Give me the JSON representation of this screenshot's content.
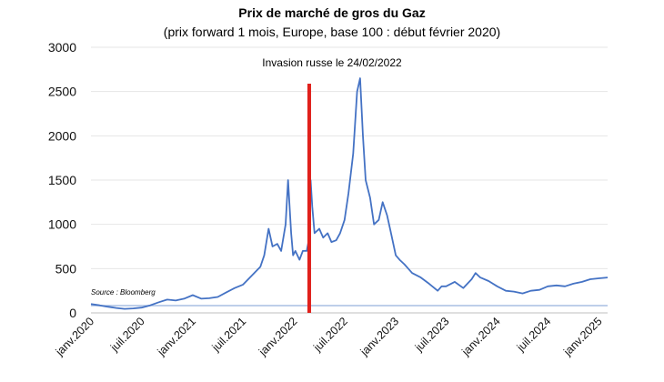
{
  "chart_data": {
    "type": "line",
    "title": "Prix de marché de gros du Gaz",
    "subtitle": "(prix forward 1 mois, Europe, base 100 : début février 2020)",
    "annotation": "Invasion russe le 24/02/2022",
    "annotation_date": "2022-02-24",
    "source": "Source : Bloomberg",
    "line_color": "#4472C4",
    "marker_color": "#E0201B",
    "ylim": [
      0,
      3000
    ],
    "yticks": [
      0,
      500,
      1000,
      1500,
      2000,
      2500,
      3000
    ],
    "ytick_labels": [
      "0",
      "500",
      "1000",
      "1500",
      "2000",
      "2500",
      "3000"
    ],
    "xlim": [
      "2020-01-01",
      "2025-02-01"
    ],
    "xticks": [
      "2020-01-01",
      "2020-07-01",
      "2021-01-01",
      "2021-07-01",
      "2022-01-01",
      "2022-07-01",
      "2023-01-01",
      "2023-07-01",
      "2024-01-01",
      "2024-07-01",
      "2025-01-01"
    ],
    "xtick_labels": [
      "janv.2020",
      "juil.2020",
      "janv.2021",
      "juil.2021",
      "janv.2022",
      "juil.2022",
      "janv.2023",
      "juil.2023",
      "janv.2024",
      "juil.2024",
      "janv.2025"
    ],
    "series": [
      {
        "x": [
          "2020-01-01",
          "2020-02-01",
          "2020-03-01",
          "2020-04-01",
          "2020-05-01",
          "2020-06-01",
          "2020-07-01",
          "2020-08-01",
          "2020-09-01",
          "2020-10-01",
          "2020-11-01",
          "2020-12-01",
          "2021-01-01",
          "2021-02-01",
          "2021-03-01",
          "2021-04-01",
          "2021-05-01",
          "2021-06-01",
          "2021-07-01",
          "2021-08-01",
          "2021-09-01",
          "2021-09-15",
          "2021-10-01",
          "2021-10-15",
          "2021-11-01",
          "2021-11-15",
          "2021-12-01",
          "2021-12-10",
          "2021-12-21",
          "2021-12-28",
          "2022-01-05",
          "2022-01-20",
          "2022-02-01",
          "2022-02-15",
          "2022-02-24",
          "2022-03-01",
          "2022-03-07",
          "2022-03-15",
          "2022-04-01",
          "2022-04-15",
          "2022-05-01",
          "2022-05-15",
          "2022-06-01",
          "2022-06-15",
          "2022-07-01",
          "2022-07-15",
          "2022-08-01",
          "2022-08-15",
          "2022-08-26",
          "2022-09-05",
          "2022-09-15",
          "2022-10-01",
          "2022-10-15",
          "2022-11-01",
          "2022-11-15",
          "2022-12-01",
          "2022-12-15",
          "2023-01-01",
          "2023-01-15",
          "2023-02-01",
          "2023-02-15",
          "2023-03-01",
          "2023-04-01",
          "2023-05-01",
          "2023-06-01",
          "2023-06-15",
          "2023-07-01",
          "2023-08-01",
          "2023-09-01",
          "2023-10-01",
          "2023-10-15",
          "2023-11-01",
          "2023-12-01",
          "2024-01-01",
          "2024-02-01",
          "2024-03-01",
          "2024-04-01",
          "2024-05-01",
          "2024-06-01",
          "2024-07-01",
          "2024-08-01",
          "2024-09-01",
          "2024-10-01",
          "2024-11-01",
          "2024-12-01",
          "2025-01-01",
          "2025-02-01"
        ],
        "values": [
          100,
          85,
          70,
          55,
          45,
          50,
          60,
          85,
          120,
          150,
          140,
          160,
          200,
          160,
          165,
          180,
          230,
          280,
          320,
          420,
          520,
          650,
          950,
          750,
          780,
          700,
          1000,
          1500,
          900,
          650,
          700,
          600,
          700,
          700,
          850,
          1500,
          1200,
          900,
          950,
          850,
          900,
          800,
          820,
          900,
          1050,
          1350,
          1800,
          2500,
          2650,
          2000,
          1500,
          1300,
          1000,
          1050,
          1250,
          1100,
          900,
          650,
          600,
          550,
          500,
          450,
          400,
          330,
          250,
          300,
          300,
          350,
          280,
          380,
          450,
          400,
          360,
          300,
          250,
          240,
          220,
          250,
          260,
          300,
          310,
          300,
          330,
          350,
          380,
          390,
          400
        ]
      }
    ]
  }
}
